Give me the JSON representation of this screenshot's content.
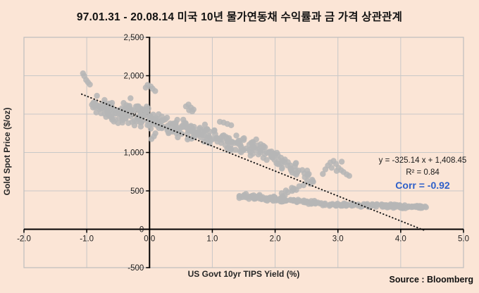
{
  "header": {
    "title": "97.01.31 - 20.08.14 미국 10년 물가연동채 수익률과 금 가격 상관관계"
  },
  "footer": {
    "source": "Source : Bloomberg"
  },
  "colors": {
    "background": "#fbe5d6",
    "gridline": "#c8c8c8",
    "plot_border": "#bdbdbd",
    "axis": "#000000",
    "point": "#b6b6b6",
    "trend": "#1a1a1a",
    "tick_text": "#1f1f1f",
    "corr_blue": "#2e5fc9"
  },
  "chart_data": {
    "type": "scatter",
    "title": "97.01.31 - 20.08.14 미국 10년 물가연동채 수익률과 금 가격 상관관계",
    "xlabel": "US Govt 10yr TIPS Yield (%)",
    "ylabel": "Gold Spot Price ($/oz)",
    "xlim": [
      -2.0,
      5.0
    ],
    "ylim": [
      -500,
      2500
    ],
    "grid": true,
    "x_ticks": [
      -2,
      -1,
      0,
      1,
      2,
      3,
      4,
      5
    ],
    "x_tick_labels": [
      "-2.0",
      "-1.0",
      "0.0",
      "1.0",
      "2.0",
      "3.0",
      "4.0",
      "5.0"
    ],
    "y_ticks": [
      -500,
      0,
      500,
      1000,
      1500,
      2000,
      2500
    ],
    "y_tick_labels": [
      "-500",
      "0",
      "500",
      "1,000",
      "1,500",
      "2,000",
      "2,500"
    ],
    "trendline": {
      "style": "dotted",
      "slope": -325.14,
      "intercept": 1408.45,
      "x_start": -1.08,
      "x_end": 4.37
    },
    "annotation": {
      "line1": "y = -325.14 x + 1,408.45",
      "line2": "R² = 0.84",
      "line3": "Corr = -0.92"
    },
    "points": [
      [
        -1.06,
        2030
      ],
      [
        -1.04,
        1995
      ],
      [
        -1.01,
        1945
      ],
      [
        -0.98,
        1915
      ],
      [
        -0.95,
        1885
      ],
      [
        -0.06,
        1845
      ],
      [
        -0.03,
        1880
      ],
      [
        0.02,
        1860
      ],
      [
        0.05,
        1830
      ],
      [
        0.09,
        1800
      ],
      [
        0.03,
        1175
      ],
      [
        0.07,
        1210
      ],
      [
        0.58,
        1600
      ],
      [
        0.62,
        1625
      ],
      [
        0.66,
        1585
      ],
      [
        0.7,
        1560
      ],
      [
        0.63,
        1550
      ],
      [
        0.68,
        1535
      ],
      [
        1.12,
        1400
      ],
      [
        1.18,
        1390
      ],
      [
        1.24,
        1372
      ],
      [
        1.3,
        1355
      ],
      [
        2.76,
        720
      ],
      [
        2.8,
        780
      ],
      [
        2.84,
        830
      ],
      [
        2.88,
        870
      ],
      [
        2.93,
        890
      ],
      [
        2.97,
        850
      ],
      [
        3.01,
        800
      ],
      [
        3.05,
        770
      ],
      [
        3.09,
        745
      ],
      [
        3.14,
        715
      ],
      [
        3.18,
        695
      ],
      [
        2.9,
        800
      ],
      [
        2.98,
        760
      ],
      [
        3.06,
        880
      ]
    ],
    "point_clusters": [
      {
        "name": "nw-cloud",
        "seed": 11,
        "n": 60,
        "x": [
          -0.93,
          -0.42
        ],
        "y_center": [
          1640,
          1480
        ],
        "y_jitter": 170
      },
      {
        "name": "axis-column",
        "seed": 22,
        "n": 72,
        "x": [
          -0.44,
          0.06
        ],
        "y_center": [
          1570,
          1450
        ],
        "y_jitter": 195
      },
      {
        "name": "band-a",
        "seed": 33,
        "n": 80,
        "x": [
          0.04,
          0.72
        ],
        "y_center": [
          1400,
          1260
        ],
        "y_jitter": 150
      },
      {
        "name": "band-b",
        "seed": 44,
        "n": 62,
        "x": [
          0.72,
          1.4
        ],
        "y_center": [
          1260,
          1120
        ],
        "y_jitter": 145
      },
      {
        "name": "band-c",
        "seed": 55,
        "n": 48,
        "x": [
          1.4,
          1.95
        ],
        "y_center": [
          1120,
          990
        ],
        "y_jitter": 130
      },
      {
        "name": "descent",
        "seed": 66,
        "n": 50,
        "x": [
          1.92,
          2.62
        ],
        "y_center": [
          1000,
          620
        ],
        "y_jitter": 110
      },
      {
        "name": "wedge",
        "seed": 77,
        "n": 14,
        "x": [
          2.1,
          2.5
        ],
        "y_center": [
          450,
          600
        ],
        "y_jitter": 55
      },
      {
        "name": "low-band-west",
        "seed": 88,
        "n": 60,
        "x": [
          1.42,
          2.12
        ],
        "y_center": [
          435,
          385
        ],
        "y_jitter": 42
      },
      {
        "name": "low-band-mid",
        "seed": 99,
        "n": 44,
        "x": [
          2.12,
          2.8
        ],
        "y_center": [
          380,
          335
        ],
        "y_jitter": 33
      },
      {
        "name": "low-band-east1",
        "seed": 111,
        "n": 36,
        "x": [
          2.84,
          3.38
        ],
        "y_center": [
          325,
          308
        ],
        "y_jitter": 26
      },
      {
        "name": "low-band-east2",
        "seed": 122,
        "n": 66,
        "x": [
          3.38,
          4.12
        ],
        "y_center": [
          312,
          292
        ],
        "y_jitter": 30
      },
      {
        "name": "tail",
        "seed": 133,
        "n": 20,
        "x": [
          4.12,
          4.44
        ],
        "y_center": [
          294,
          288
        ],
        "y_jitter": 18
      }
    ]
  }
}
